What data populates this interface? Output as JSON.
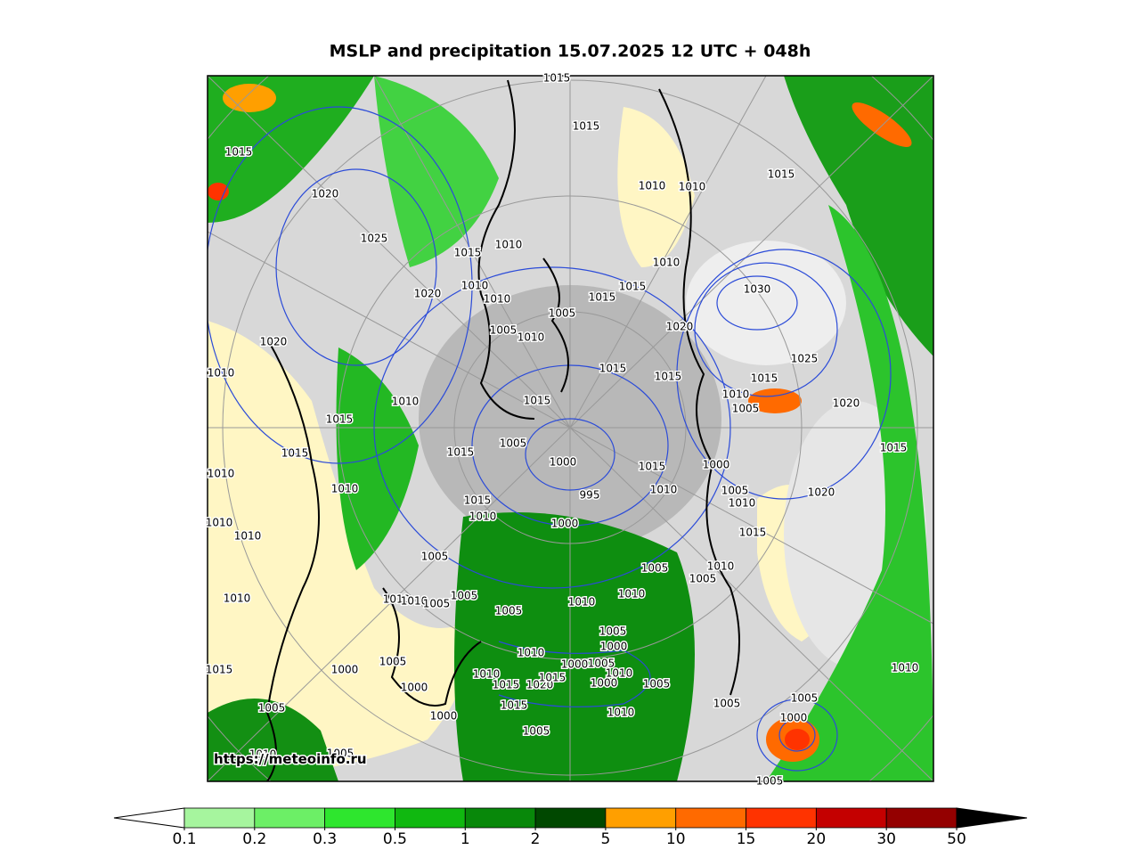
{
  "title": "MSLP and precipitation 15.07.2025 12 UTC + 048h",
  "watermark": "https://meteoinfo.ru",
  "isobar_labels": [
    "1015",
    "1015",
    "1015",
    "1020",
    "1025",
    "1010",
    "1010",
    "1015",
    "1015",
    "1010",
    "1010",
    "1010",
    "1010",
    "1020",
    "1015",
    "1015",
    "1030",
    "1005",
    "1005",
    "1010",
    "1020",
    "1020",
    "1010",
    "1015",
    "1025",
    "1015",
    "1015",
    "1010",
    "1005",
    "1020",
    "1010",
    "1015",
    "1015",
    "1005",
    "1015",
    "1015",
    "1000",
    "1015",
    "1000",
    "1015",
    "1010",
    "1010",
    "1010",
    "1005",
    "1015",
    "995",
    "1020",
    "1010",
    "1010",
    "1000",
    "1010",
    "1010",
    "1015",
    "1005",
    "1005",
    "1010",
    "1005",
    "1010",
    "1010",
    "1010",
    "1005",
    "1005",
    "1010",
    "1010",
    "1005",
    "1005",
    "1000",
    "1010",
    "1005",
    "1000",
    "1015",
    "1000",
    "1005",
    "1010",
    "1010",
    "1000",
    "1015",
    "1020",
    "1015",
    "1000",
    "1005",
    "1010",
    "1005",
    "1005",
    "1015",
    "1010",
    "1005",
    "1000",
    "1000",
    "1005",
    "1010",
    "1005",
    "1005"
  ],
  "colorbar": {
    "ticks": [
      0.1,
      0.2,
      0.3,
      0.5,
      1,
      2,
      5,
      10,
      15,
      20,
      30,
      50
    ],
    "colors": [
      "#a6f59e",
      "#6cef66",
      "#2ee62e",
      "#10b810",
      "#08880a",
      "#004800",
      "#ff9f00",
      "#ff6a00",
      "#ff3300",
      "#c40000",
      "#940000"
    ],
    "under_color": "#ffffff",
    "over_color": "#000000"
  }
}
